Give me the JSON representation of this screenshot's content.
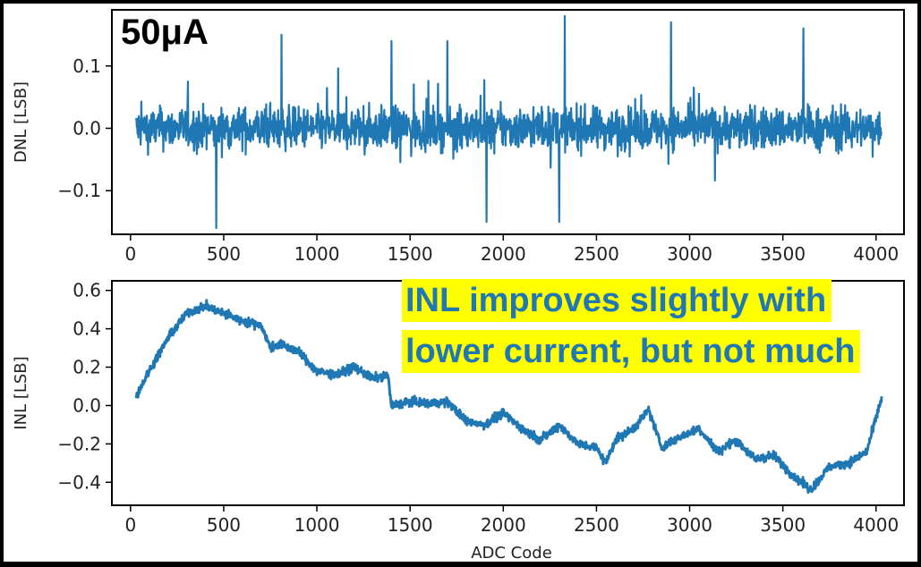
{
  "chart_data": [
    {
      "type": "line",
      "panel_label": "50μA",
      "xlabel": "",
      "ylabel": "DNL [LSB]",
      "xlim": [
        -100,
        4150
      ],
      "ylim": [
        -0.17,
        0.19
      ],
      "xticks": [
        0,
        500,
        1000,
        1500,
        2000,
        2500,
        3000,
        3500,
        4000
      ],
      "yticks": [
        -0.1,
        0.0,
        0.1
      ],
      "ytick_labels": [
        "−0.1",
        "0.0",
        "0.1"
      ],
      "series": [
        {
          "color": "#1f77b4",
          "x_range": [
            30,
            4030
          ],
          "noise": "dense random noise about 0, typical amplitude about ±0.06 LSB",
          "spikes": [
            {
              "x": 460,
              "y": -0.16
            },
            {
              "x": 2330,
              "y": 0.18
            },
            {
              "x": 2900,
              "y": 0.17
            },
            {
              "x": 810,
              "y": 0.15
            },
            {
              "x": 1400,
              "y": 0.14
            },
            {
              "x": 1700,
              "y": 0.14
            },
            {
              "x": 1910,
              "y": -0.15
            },
            {
              "x": 2300,
              "y": -0.15
            },
            {
              "x": 3610,
              "y": 0.16
            }
          ]
        }
      ]
    },
    {
      "type": "line",
      "xlabel": "ADC Code",
      "ylabel": "INL [LSB]",
      "xlim": [
        -100,
        4150
      ],
      "ylim": [
        -0.52,
        0.65
      ],
      "xticks": [
        0,
        500,
        1000,
        1500,
        2000,
        2500,
        3000,
        3500,
        4000
      ],
      "yticks": [
        -0.4,
        -0.2,
        0.0,
        0.2,
        0.4,
        0.6
      ],
      "ytick_labels": [
        "−0.4",
        "−0.2",
        "0.0",
        "0.2",
        "0.4",
        "0.6"
      ],
      "series": [
        {
          "color": "#1f77b4",
          "x": [
            30,
            100,
            200,
            300,
            400,
            500,
            600,
            700,
            750,
            800,
            900,
            1000,
            1100,
            1200,
            1300,
            1380,
            1400,
            1500,
            1600,
            1700,
            1800,
            1900,
            2000,
            2100,
            2200,
            2300,
            2400,
            2500,
            2550,
            2600,
            2700,
            2780,
            2850,
            2950,
            3050,
            3150,
            3250,
            3350,
            3450,
            3550,
            3650,
            3750,
            3850,
            3950,
            4030
          ],
          "y": [
            0.05,
            0.18,
            0.35,
            0.48,
            0.52,
            0.48,
            0.44,
            0.42,
            0.3,
            0.32,
            0.28,
            0.18,
            0.16,
            0.2,
            0.14,
            0.16,
            0.0,
            0.02,
            0.01,
            0.02,
            -0.08,
            -0.1,
            -0.04,
            -0.12,
            -0.18,
            -0.1,
            -0.2,
            -0.22,
            -0.3,
            -0.18,
            -0.12,
            -0.02,
            -0.22,
            -0.16,
            -0.12,
            -0.24,
            -0.18,
            -0.28,
            -0.26,
            -0.36,
            -0.44,
            -0.32,
            -0.3,
            -0.24,
            0.04
          ],
          "noise": "fine jitter about the trend, about ±0.04 LSB"
        }
      ]
    }
  ],
  "annotation": {
    "lines": [
      "INL improves slightly with",
      "lower current, but not much"
    ],
    "text_color": "#1f77b4",
    "background": "#ffff00"
  },
  "colors": {
    "background": "#ffffff",
    "border": "#000000",
    "series": "#1f77b4"
  }
}
